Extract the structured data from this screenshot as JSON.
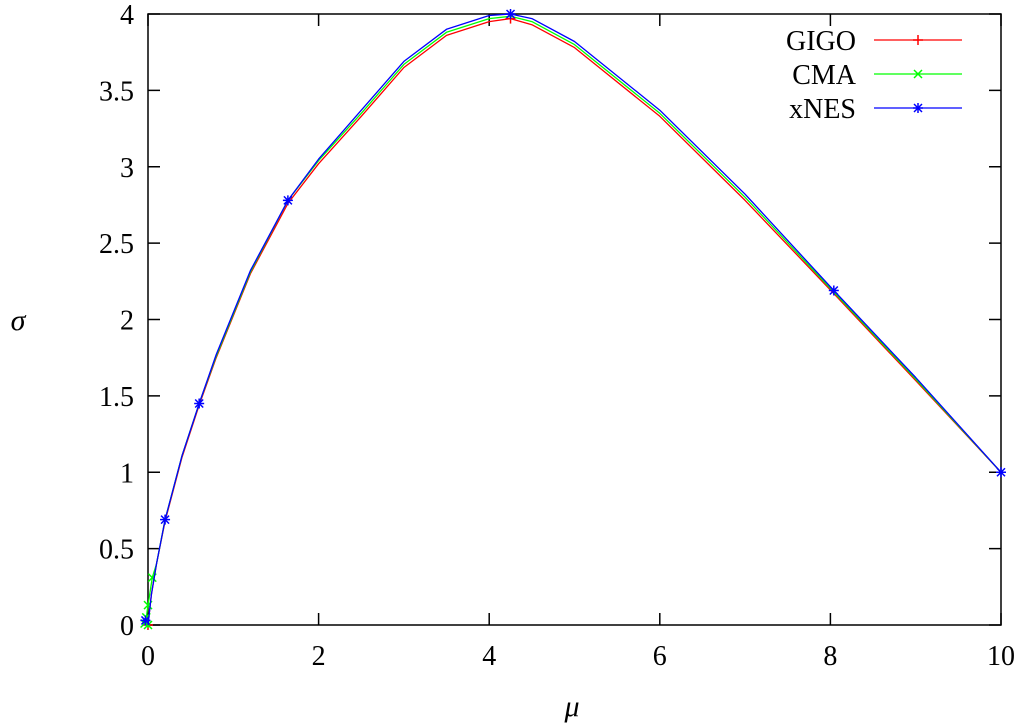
{
  "chart_data": {
    "type": "line",
    "title": "",
    "xlabel": "μ",
    "ylabel": "σ",
    "xlim": [
      0,
      10
    ],
    "ylim": [
      0,
      4
    ],
    "xticks": [
      "0",
      "2",
      "4",
      "6",
      "8",
      "10"
    ],
    "yticks": [
      "0",
      "0.5",
      "1",
      "1.5",
      "2",
      "2.5",
      "3",
      "3.5",
      "4"
    ],
    "grid": false,
    "legend_position": "top-right",
    "series": [
      {
        "name": "GIGO",
        "color": "#ff0000",
        "marker": "plus",
        "points": [
          [
            10,
            1.0
          ],
          [
            9,
            1.6
          ],
          [
            8.04,
            2.17
          ],
          [
            7,
            2.78
          ],
          [
            6,
            3.33
          ],
          [
            5,
            3.78
          ],
          [
            4.5,
            3.93
          ],
          [
            4.25,
            3.97
          ],
          [
            4,
            3.95
          ],
          [
            3.5,
            3.86
          ],
          [
            3,
            3.65
          ],
          [
            2.5,
            3.33
          ],
          [
            2,
            3.02
          ],
          [
            1.64,
            2.76
          ],
          [
            1.2,
            2.3
          ],
          [
            0.8,
            1.75
          ],
          [
            0.6,
            1.44
          ],
          [
            0.4,
            1.1
          ],
          [
            0.2,
            0.68
          ],
          [
            0.1,
            0.4
          ],
          [
            0.04,
            0.2
          ],
          [
            0,
            0
          ]
        ],
        "marker_points": [
          [
            4.25,
            3.97
          ],
          [
            0,
            0
          ]
        ]
      },
      {
        "name": "CMA",
        "color": "#00ff00",
        "marker": "cross",
        "points": [
          [
            10,
            1.0
          ],
          [
            9,
            1.61
          ],
          [
            8.04,
            2.18
          ],
          [
            7,
            2.8
          ],
          [
            6,
            3.35
          ],
          [
            5,
            3.8
          ],
          [
            4.5,
            3.95
          ],
          [
            4.25,
            3.985
          ],
          [
            4,
            3.97
          ],
          [
            3.5,
            3.88
          ],
          [
            3,
            3.67
          ],
          [
            2.5,
            3.35
          ],
          [
            2,
            3.04
          ],
          [
            1.64,
            2.78
          ],
          [
            1.2,
            2.31
          ],
          [
            0.8,
            1.76
          ],
          [
            0.6,
            1.45
          ],
          [
            0.4,
            1.11
          ],
          [
            0.2,
            0.69
          ],
          [
            0.1,
            0.4
          ],
          [
            0.05,
            0.31
          ],
          [
            0,
            0.13
          ],
          [
            -0.02,
            0.05
          ],
          [
            -0.04,
            0.01
          ],
          [
            0,
            0
          ]
        ],
        "marker_points": [
          [
            0.05,
            0.31
          ],
          [
            0,
            0.13
          ],
          [
            -0.02,
            0.05
          ],
          [
            -0.04,
            0.01
          ],
          [
            0,
            0
          ]
        ]
      },
      {
        "name": "xNES",
        "color": "#0000ff",
        "marker": "star",
        "points": [
          [
            10,
            1.0
          ],
          [
            9,
            1.62
          ],
          [
            8.04,
            2.19
          ],
          [
            7,
            2.82
          ],
          [
            6,
            3.37
          ],
          [
            5,
            3.82
          ],
          [
            4.5,
            3.97
          ],
          [
            4.25,
            4.0
          ],
          [
            4,
            3.99
          ],
          [
            3.5,
            3.9
          ],
          [
            3,
            3.69
          ],
          [
            2.5,
            3.37
          ],
          [
            2,
            3.05
          ],
          [
            1.64,
            2.78
          ],
          [
            1.2,
            2.32
          ],
          [
            0.8,
            1.77
          ],
          [
            0.6,
            1.45
          ],
          [
            0.4,
            1.11
          ],
          [
            0.2,
            0.69
          ],
          [
            0.1,
            0.4
          ],
          [
            0.04,
            0.2
          ],
          [
            0,
            0
          ]
        ],
        "marker_points": [
          [
            10,
            1.0
          ],
          [
            8.04,
            2.19
          ],
          [
            4.25,
            4.0
          ],
          [
            1.64,
            2.78
          ],
          [
            0.6,
            1.45
          ],
          [
            0.2,
            0.69
          ],
          [
            -0.03,
            0.03
          ]
        ]
      }
    ]
  }
}
